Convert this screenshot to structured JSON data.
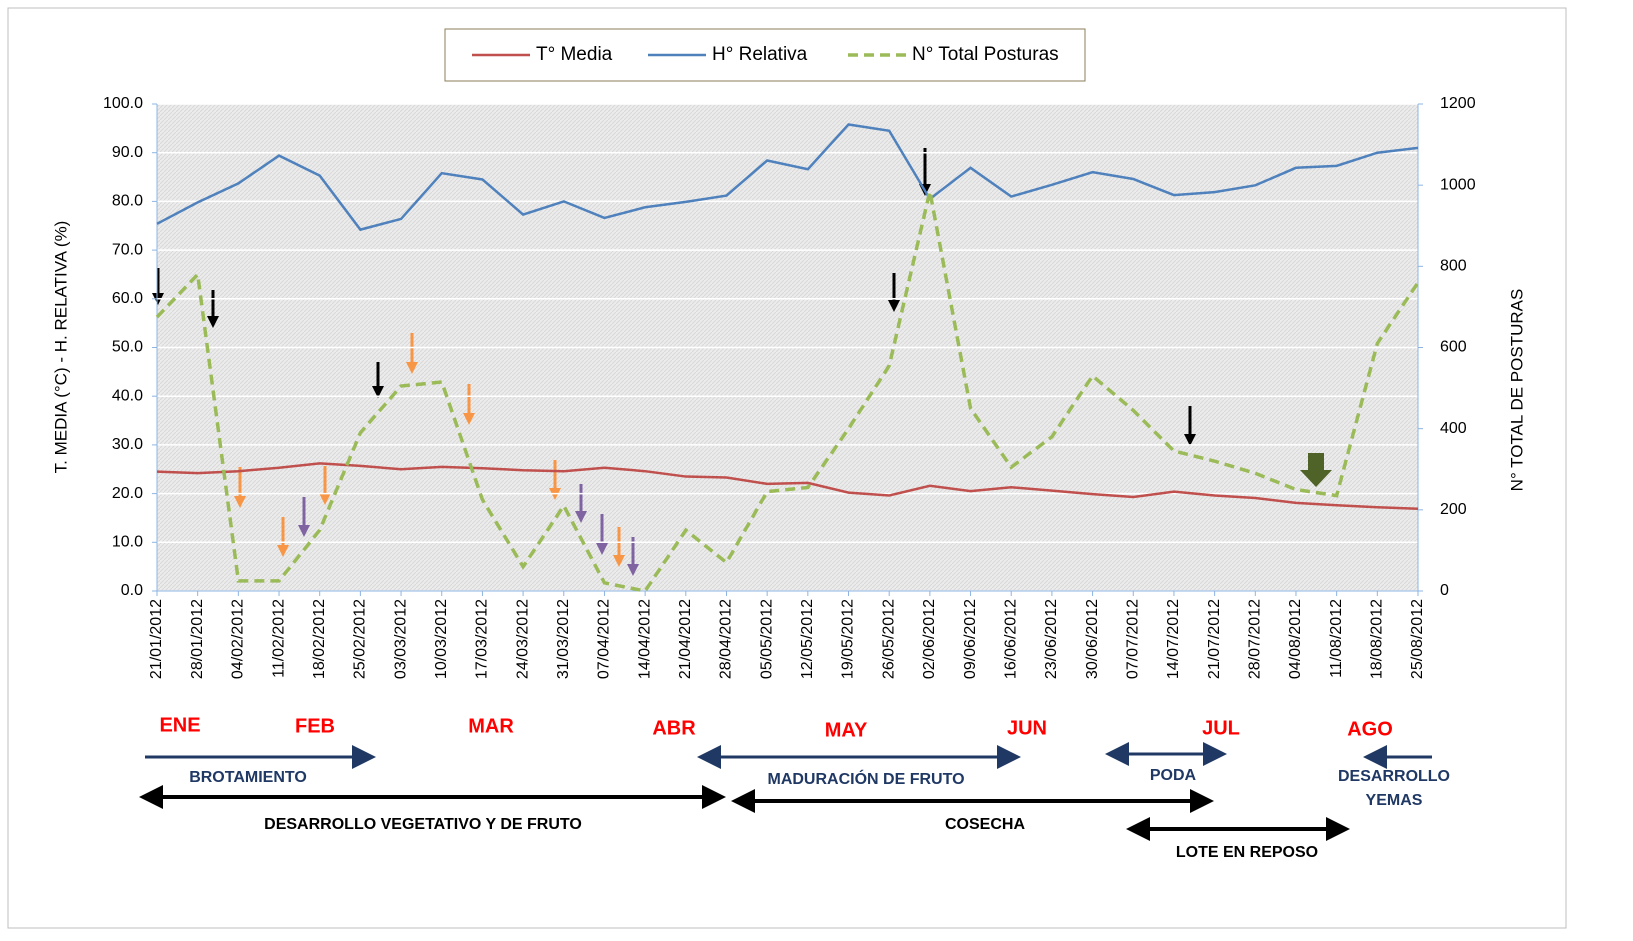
{
  "chart_data": {
    "type": "line",
    "categories": [
      "21/01/2012",
      "28/01/2012",
      "04/02/2012",
      "11/02/2012",
      "18/02/2012",
      "25/02/2012",
      "03/03/2012",
      "10/03/2012",
      "17/03/2012",
      "24/03/2012",
      "31/03/2012",
      "07/04/2012",
      "14/04/2012",
      "21/04/2012",
      "28/04/2012",
      "05/05/2012",
      "12/05/2012",
      "19/05/2012",
      "26/05/2012",
      "02/06/2012",
      "09/06/2012",
      "16/06/2012",
      "23/06/2012",
      "30/06/2012",
      "07/07/2012",
      "14/07/2012",
      "21/07/2012",
      "28/07/2012",
      "04/08/2012",
      "11/08/2012",
      "18/08/2012",
      "25/08/2012"
    ],
    "series": [
      {
        "name": "T° Media",
        "color": "#c0504d",
        "dash": false,
        "axis": "y",
        "values": [
          24.5,
          24.2,
          24.6,
          25.3,
          26.2,
          25.7,
          25.0,
          25.5,
          25.2,
          24.8,
          24.6,
          25.3,
          24.6,
          23.5,
          23.3,
          22.0,
          22.2,
          20.2,
          19.6,
          21.6,
          20.5,
          21.3,
          20.6,
          19.9,
          19.3,
          20.4,
          19.6,
          19.1,
          18.1,
          17.6,
          17.2,
          16.9
        ]
      },
      {
        "name": "H° Relativa",
        "color": "#4f81bd",
        "dash": false,
        "axis": "y",
        "values": [
          75.4,
          79.8,
          83.7,
          89.4,
          85.3,
          74.2,
          76.4,
          85.8,
          84.5,
          77.3,
          80.0,
          76.6,
          78.8,
          79.9,
          81.2,
          88.4,
          86.6,
          95.8,
          94.5,
          80.5,
          86.9,
          81.0,
          83.4,
          86.0,
          84.6,
          81.3,
          81.9,
          83.3,
          86.9,
          87.3,
          90.0,
          91.0
        ]
      },
      {
        "name": "N° Total Posturas",
        "color": "#9bbb59",
        "dash": true,
        "axis": "y2",
        "values": [
          675,
          780,
          25,
          25,
          150,
          390,
          505,
          515,
          225,
          60,
          210,
          20,
          0,
          150,
          70,
          245,
          255,
          400,
          555,
          985,
          450,
          305,
          380,
          530,
          445,
          345,
          320,
          290,
          250,
          235,
          610,
          760
        ]
      }
    ],
    "ylabel": "T. MEDIA (°C) - H. RELATIVA (%)",
    "y2label": "N° TOTAL DE POSTURAS",
    "ylim": [
      0,
      100
    ],
    "yticks": [
      {
        "value": 0,
        "label": "0.0"
      },
      {
        "value": 10,
        "label": "10.0"
      },
      {
        "value": 20,
        "label": "20.0"
      },
      {
        "value": 30,
        "label": "30.0"
      },
      {
        "value": 40,
        "label": "40.0"
      },
      {
        "value": 50,
        "label": "50.0"
      },
      {
        "value": 60,
        "label": "60.0"
      },
      {
        "value": 70,
        "label": "70.0"
      },
      {
        "value": 80,
        "label": "80.0"
      },
      {
        "value": 90,
        "label": "90.0"
      },
      {
        "value": 100,
        "label": "100.0"
      }
    ],
    "y2lim": [
      0,
      1200
    ],
    "y2ticks": [
      0,
      200,
      400,
      600,
      800,
      1000,
      1200
    ],
    "grid": true,
    "legend": "top",
    "months": [
      "ENE",
      "FEB",
      "MAR",
      "ABR",
      "MAY",
      "JUN",
      "JUL",
      "AGO"
    ],
    "phases": [
      "BROTAMIENTO",
      "MADURACIÓN DE FRUTO",
      "PODA",
      "DESARROLLO",
      "YEMAS"
    ],
    "periods": [
      "DESARROLLO VEGETATIVO Y DE FRUTO",
      "COSECHA",
      "LOTE EN REPOSO"
    ]
  }
}
